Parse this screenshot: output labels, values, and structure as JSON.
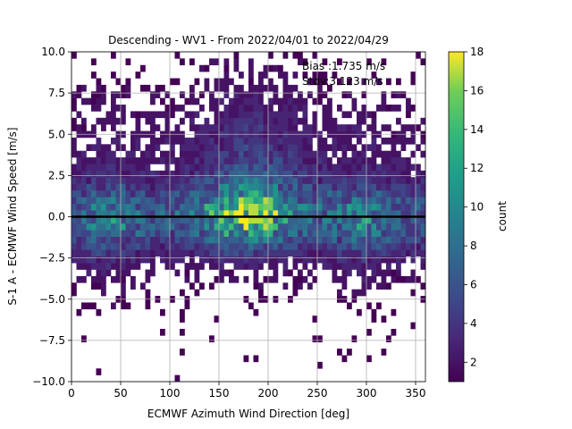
{
  "chart_data": {
    "type": "heatmap",
    "title": "Descending - WV1 - From 2022/04/01 to 2022/04/29",
    "xlabel": "ECMWF Azimuth Wind Direction [deg]",
    "ylabel": "S-1 A - ECMWF Wind Speed [m/s]",
    "xlim": [
      0,
      360
    ],
    "ylim": [
      -10,
      10
    ],
    "xticks": [
      "0",
      "50",
      "100",
      "150",
      "200",
      "250",
      "300",
      "350"
    ],
    "yticks": [
      "−10.0",
      "−7.5",
      "−5.0",
      "−2.5",
      "0.0",
      "2.5",
      "5.0",
      "7.5",
      "10.0"
    ],
    "grid": true,
    "colormap": "viridis",
    "colorbar": {
      "label": "count",
      "min": 1,
      "max": 18,
      "ticks": [
        "2",
        "4",
        "6",
        "8",
        "10",
        "12",
        "14",
        "16",
        "18"
      ]
    },
    "reference_line": {
      "y": 0,
      "color": "#000000"
    },
    "annotation": {
      "bias": "Bias :1.735 m/s",
      "stdv": "Stdv:3.123 m/s"
    },
    "bins": {
      "x_bin_width": 5,
      "y_bin_width": 0.4
    },
    "density_peak": {
      "x": 185,
      "y": 0.2,
      "count": 17
    },
    "notes": "2D histogram of wind speed difference vs wind direction; densest near y=0, x=140-200"
  }
}
